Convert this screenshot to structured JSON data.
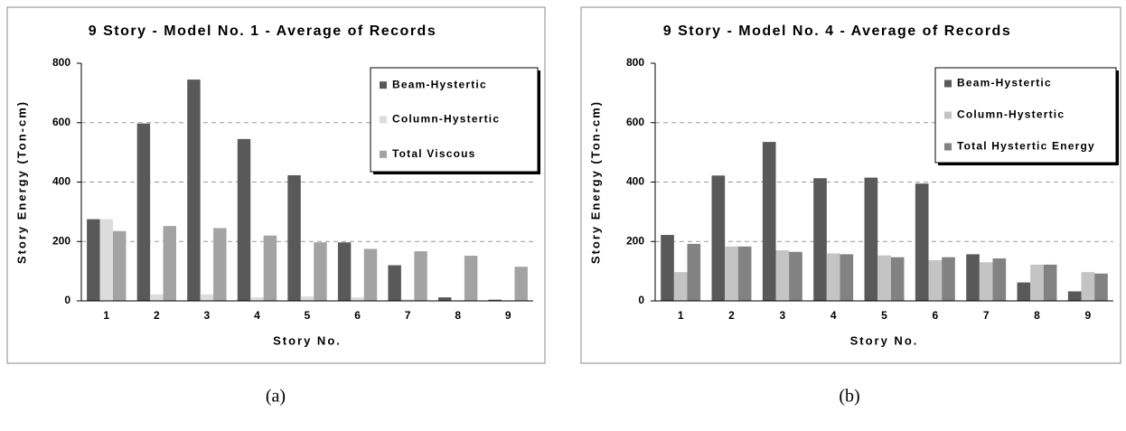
{
  "chart_data": [
    {
      "type": "bar",
      "title": "9 Story - Model No. 1 - Average of Records",
      "caption": "(a)",
      "x_label": "Story No.",
      "y_label": "Story Energy (Ton-cm)",
      "categories": [
        "1",
        "2",
        "3",
        "4",
        "5",
        "6",
        "7",
        "8",
        "9"
      ],
      "series": [
        {
          "name": "Beam-Hystertic",
          "color": "#595959",
          "values": [
            275,
            597,
            745,
            545,
            423,
            197,
            120,
            12,
            4
          ]
        },
        {
          "name": "Column-Hystertic",
          "color": "#dcdcdc",
          "values": [
            275,
            22,
            22,
            12,
            15,
            12,
            5,
            2,
            2
          ]
        },
        {
          "name": "Total Viscous",
          "color": "#a3a3a3",
          "values": [
            235,
            252,
            245,
            220,
            197,
            175,
            167,
            152,
            115
          ]
        }
      ],
      "ylim": [
        0,
        800
      ],
      "yticks": [
        0,
        200,
        400,
        600,
        800
      ],
      "grid": true,
      "legend": "upper right"
    },
    {
      "type": "bar",
      "title": "9 Story - Model No. 4 - Average of Records",
      "caption": "(b)",
      "x_label": "Story No.",
      "y_label": "Story Energy (Ton-cm)",
      "categories": [
        "1",
        "2",
        "3",
        "4",
        "5",
        "6",
        "7",
        "8",
        "9"
      ],
      "series": [
        {
          "name": "Beam-Hystertic",
          "color": "#595959",
          "values": [
            222,
            422,
            535,
            413,
            415,
            395,
            157,
            62,
            32
          ]
        },
        {
          "name": "Column-Hystertic",
          "color": "#c4c4c4",
          "values": [
            97,
            183,
            170,
            160,
            153,
            137,
            130,
            122,
            97
          ]
        },
        {
          "name": "Total Hystertic Energy",
          "color": "#828282",
          "values": [
            192,
            183,
            165,
            157,
            147,
            147,
            143,
            122,
            92
          ]
        }
      ],
      "ylim": [
        0,
        800
      ],
      "yticks": [
        0,
        200,
        400,
        600,
        800
      ],
      "grid": true,
      "legend": "upper right"
    }
  ]
}
